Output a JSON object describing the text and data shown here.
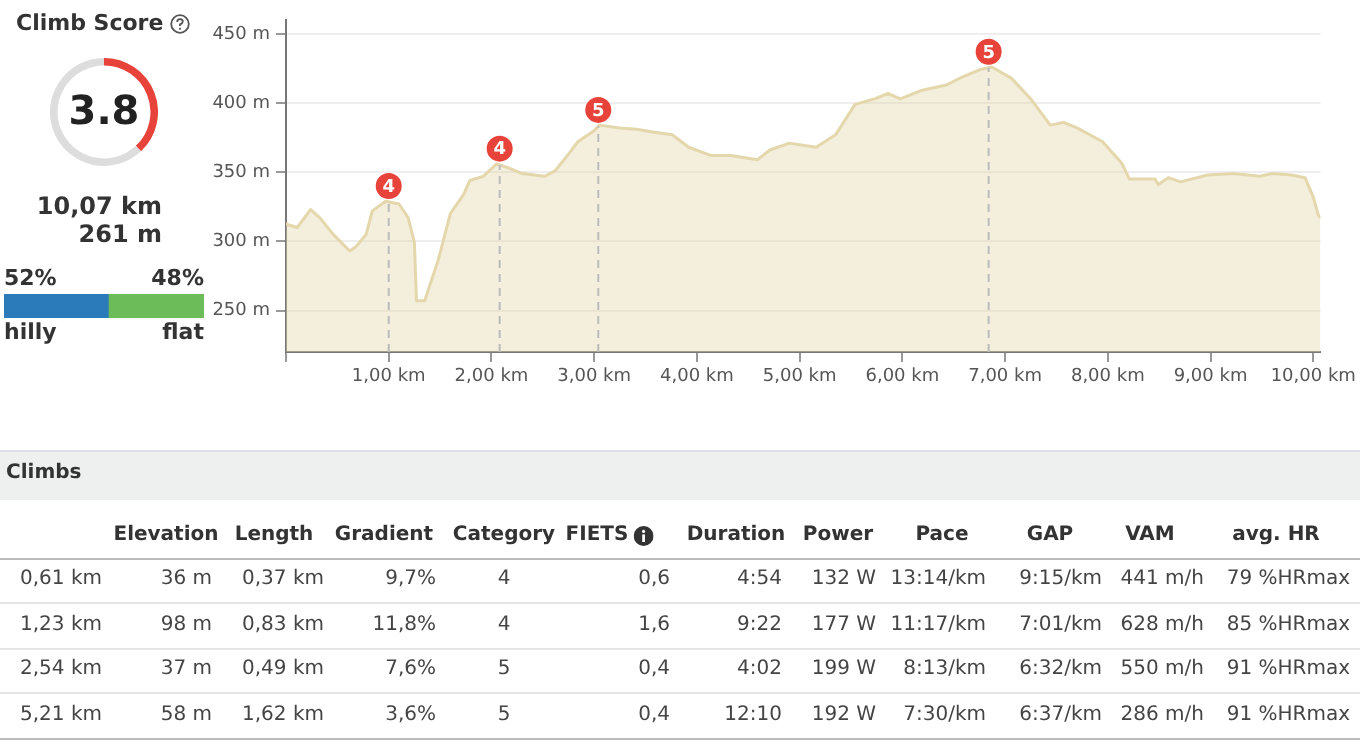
{
  "chart_data": [
    {
      "type": "donut",
      "title": "Climb Score",
      "categories": [
        null,
        null
      ],
      "values": [
        38,
        62
      ],
      "colors": [
        "#e8433b",
        "#dddddd"
      ],
      "annotations": [
        "3.8",
        "10,07 km",
        "261 m"
      ]
    },
    {
      "type": "bar",
      "orientation": "horizontal",
      "stacked": true,
      "categories": [
        null
      ],
      "xlim": [
        0,
        100
      ],
      "tick_labels": false,
      "series": [
        {
          "name": "hilly",
          "color": "#2b7bba",
          "values": [
            52
          ],
          "value_labels": [
            "52%"
          ]
        },
        {
          "name": "flat",
          "color": "#6cbd5a",
          "values": [
            48
          ],
          "value_labels": [
            "48%"
          ]
        }
      ]
    },
    {
      "type": "area",
      "x": [
        0,
        0.02,
        0.11,
        0.24,
        0.33,
        0.46,
        0.62,
        0.68,
        0.78,
        0.84,
        0.97,
        1.1,
        1.19,
        1.25,
        1.27,
        1.35,
        1.48,
        1.6,
        1.73,
        1.79,
        1.92,
        2.05,
        2.17,
        2.3,
        2.52,
        2.62,
        2.75,
        2.84,
        3.0,
        3.05,
        3.25,
        3.41,
        3.57,
        3.76,
        3.92,
        4.14,
        4.33,
        4.59,
        4.71,
        4.9,
        5.16,
        5.35,
        5.54,
        5.73,
        5.86,
        5.98,
        6.18,
        6.43,
        6.56,
        6.75,
        6.87,
        7.06,
        7.25,
        7.44,
        7.57,
        7.7,
        7.95,
        8.14,
        8.21,
        8.46,
        8.49,
        8.59,
        8.71,
        8.97,
        9.22,
        9.48,
        9.6,
        9.79,
        9.92,
        10.0,
        10.05,
        10.07
      ],
      "series": [
        {
          "color": "#e3d7ab",
          "values": [
            313,
            312,
            310,
            323,
            317,
            305,
            293,
            296,
            305,
            322,
            329,
            327,
            317,
            299,
            257,
            257,
            286,
            320,
            334,
            344,
            347,
            356,
            353,
            349,
            347,
            351,
            363,
            372,
            380,
            384,
            382,
            381,
            379,
            377,
            368,
            362,
            362,
            359,
            366,
            371,
            368,
            377,
            399,
            403,
            407,
            403,
            409,
            413,
            418,
            424,
            426,
            418,
            403,
            384,
            386,
            382,
            372,
            356,
            345,
            345,
            341,
            346,
            343,
            348,
            349,
            347,
            349,
            348,
            346,
            332,
            319,
            317
          ]
        }
      ],
      "xlim": [
        0,
        10.07
      ],
      "xticks": [
        {
          "value": 0,
          "label": null
        },
        {
          "value": 1,
          "label": "1,00 km"
        },
        {
          "value": 2,
          "label": "2,00 km"
        },
        {
          "value": 3,
          "label": "3,00 km"
        },
        {
          "value": 4,
          "label": "4,00 km"
        },
        {
          "value": 5,
          "label": "5,00 km"
        },
        {
          "value": 6,
          "label": "6,00 km"
        },
        {
          "value": 7,
          "label": "7,00 km"
        },
        {
          "value": 8,
          "label": "8,00 km"
        },
        {
          "value": 9,
          "label": "9,00 km"
        },
        {
          "value": 10,
          "label": "10,00 km"
        }
      ],
      "ylim": [
        220,
        460
      ],
      "yticks": [
        {
          "value": 250,
          "label": "250 m"
        },
        {
          "value": 300,
          "label": "300 m"
        },
        {
          "value": 350,
          "label": "350 m"
        },
        {
          "value": 400,
          "label": "400 m"
        },
        {
          "value": 450,
          "label": "450 m"
        }
      ],
      "grid": "y",
      "annotations": [
        {
          "text": "4",
          "x": 1.0,
          "y": 340
        },
        {
          "text": "4",
          "x": 2.08,
          "y": 367
        },
        {
          "text": "5",
          "x": 3.04,
          "y": 395
        },
        {
          "text": "5",
          "x": 6.84,
          "y": 437
        }
      ],
      "ref_lines": [
        {
          "axis": "x",
          "value": 1.0,
          "line_style": "dashed",
          "color": "#bbbbbb"
        },
        {
          "axis": "x",
          "value": 2.08,
          "line_style": "dashed",
          "color": "#bbbbbb"
        },
        {
          "axis": "x",
          "value": 3.04,
          "line_style": "dashed",
          "color": "#bbbbbb"
        },
        {
          "axis": "x",
          "value": 6.84,
          "line_style": "dashed",
          "color": "#bbbbbb"
        }
      ]
    },
    {
      "type": "other",
      "title": "Climbs",
      "categories": [
        null,
        "Elevation",
        "Length",
        "Gradient",
        "Category",
        "FIETS",
        "Duration",
        "Power",
        "Pace",
        "GAP",
        "VAM",
        "avg. HR"
      ],
      "annotations": [
        "0,61 km",
        "36 m",
        "0,37 km",
        "9,7%",
        "4",
        "0,6",
        "4:54",
        "132 W",
        "13:14/km",
        "9:15/km",
        "441 m/h",
        "79 %HRmax",
        "1,23 km",
        "98 m",
        "0,83 km",
        "11,8%",
        "4",
        "1,6",
        "9:22",
        "177 W",
        "11:17/km",
        "7:01/km",
        "628 m/h",
        "85 %HRmax",
        "2,54 km",
        "37 m",
        "0,49 km",
        "7,6%",
        "5",
        "0,4",
        "4:02",
        "199 W",
        "8:13/km",
        "6:32/km",
        "550 m/h",
        "91 %HRmax",
        "5,21 km",
        "58 m",
        "1,62 km",
        "3,6%",
        "5",
        "0,4",
        "12:10",
        "192 W",
        "7:30/km",
        "6:37/km",
        "286 m/h",
        "91 %HRmax"
      ]
    }
  ]
}
